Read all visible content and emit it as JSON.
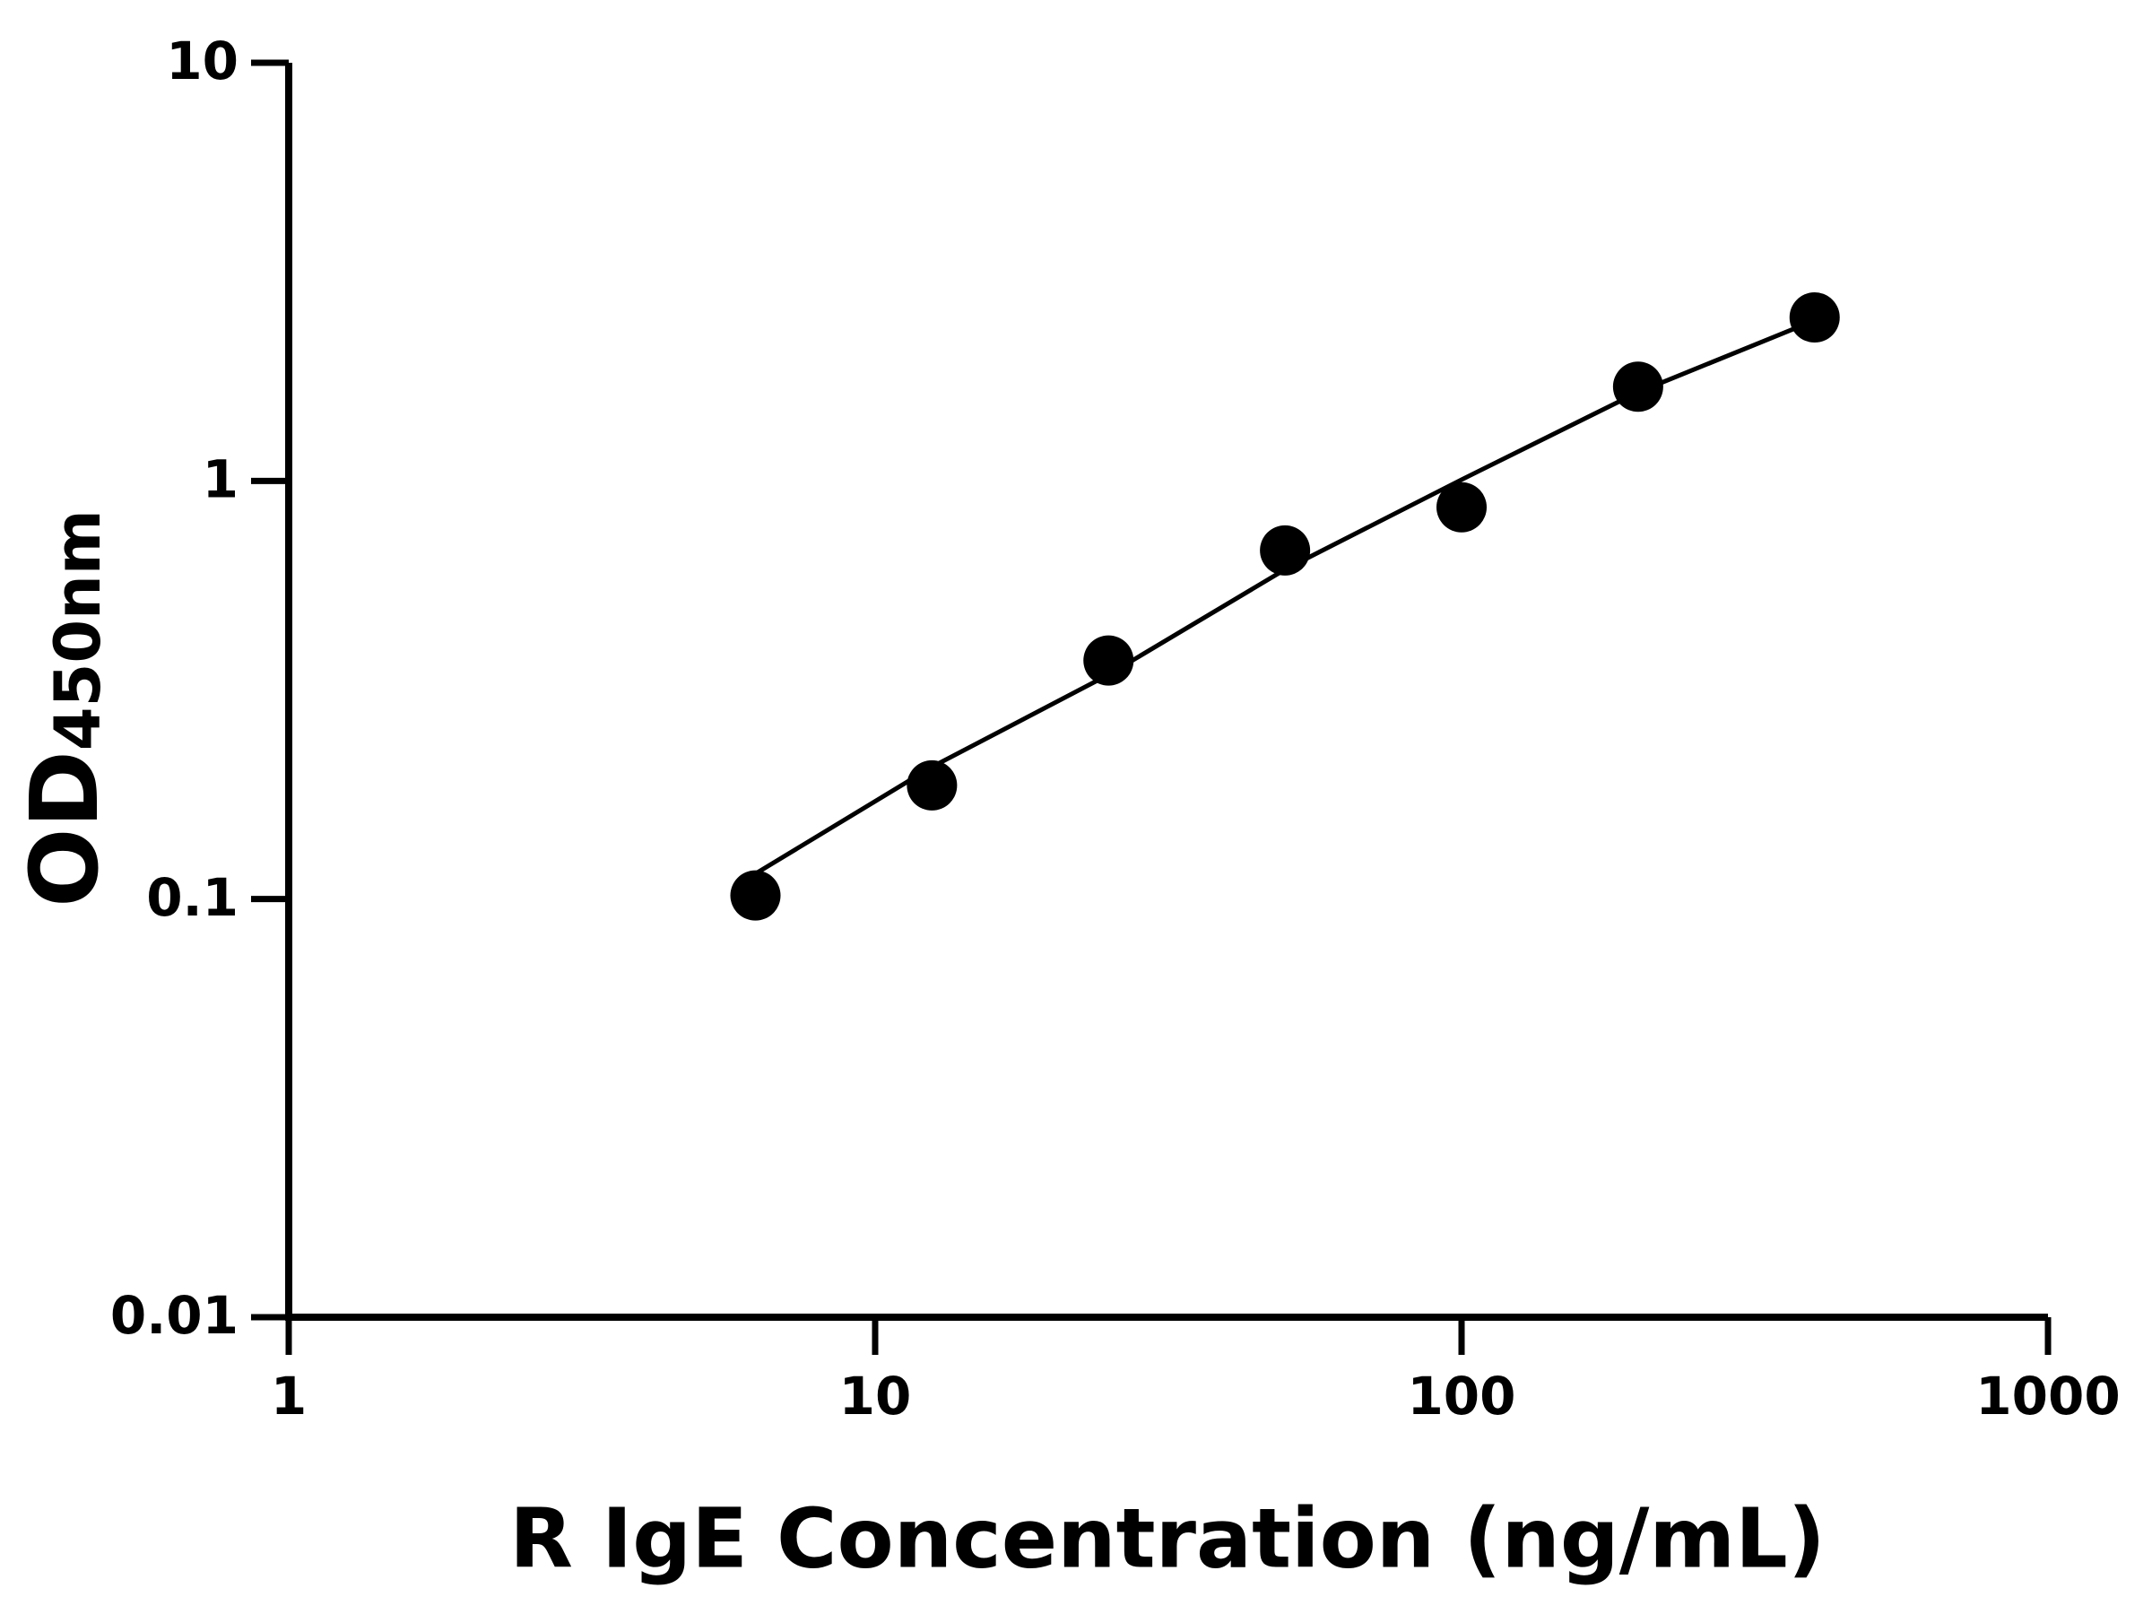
{
  "chart_data": {
    "type": "scatter",
    "x_label": "R IgE Concentration (ng/mL)",
    "y_label": "OD",
    "y_label_sub": "450nm",
    "x": [
      6.25,
      12.5,
      25,
      50,
      100,
      200,
      400
    ],
    "series": [
      {
        "color": "#000000",
        "mode": "markers",
        "values": [
          0.102,
          0.187,
          0.372,
          0.682,
          0.865,
          1.68,
          2.46
        ]
      },
      {
        "color": "#000000",
        "mode": "line",
        "values": [
          0.115,
          0.207,
          0.344,
          0.614,
          1.007,
          1.63,
          2.42
        ]
      }
    ],
    "xscale": "log",
    "yscale": "log",
    "xlim": [
      1,
      1000
    ],
    "ylim": [
      0.01,
      10
    ],
    "xticks": [
      1,
      10,
      100,
      1000
    ],
    "yticks": [
      0.01,
      0.1,
      1,
      10
    ],
    "grid": false
  }
}
